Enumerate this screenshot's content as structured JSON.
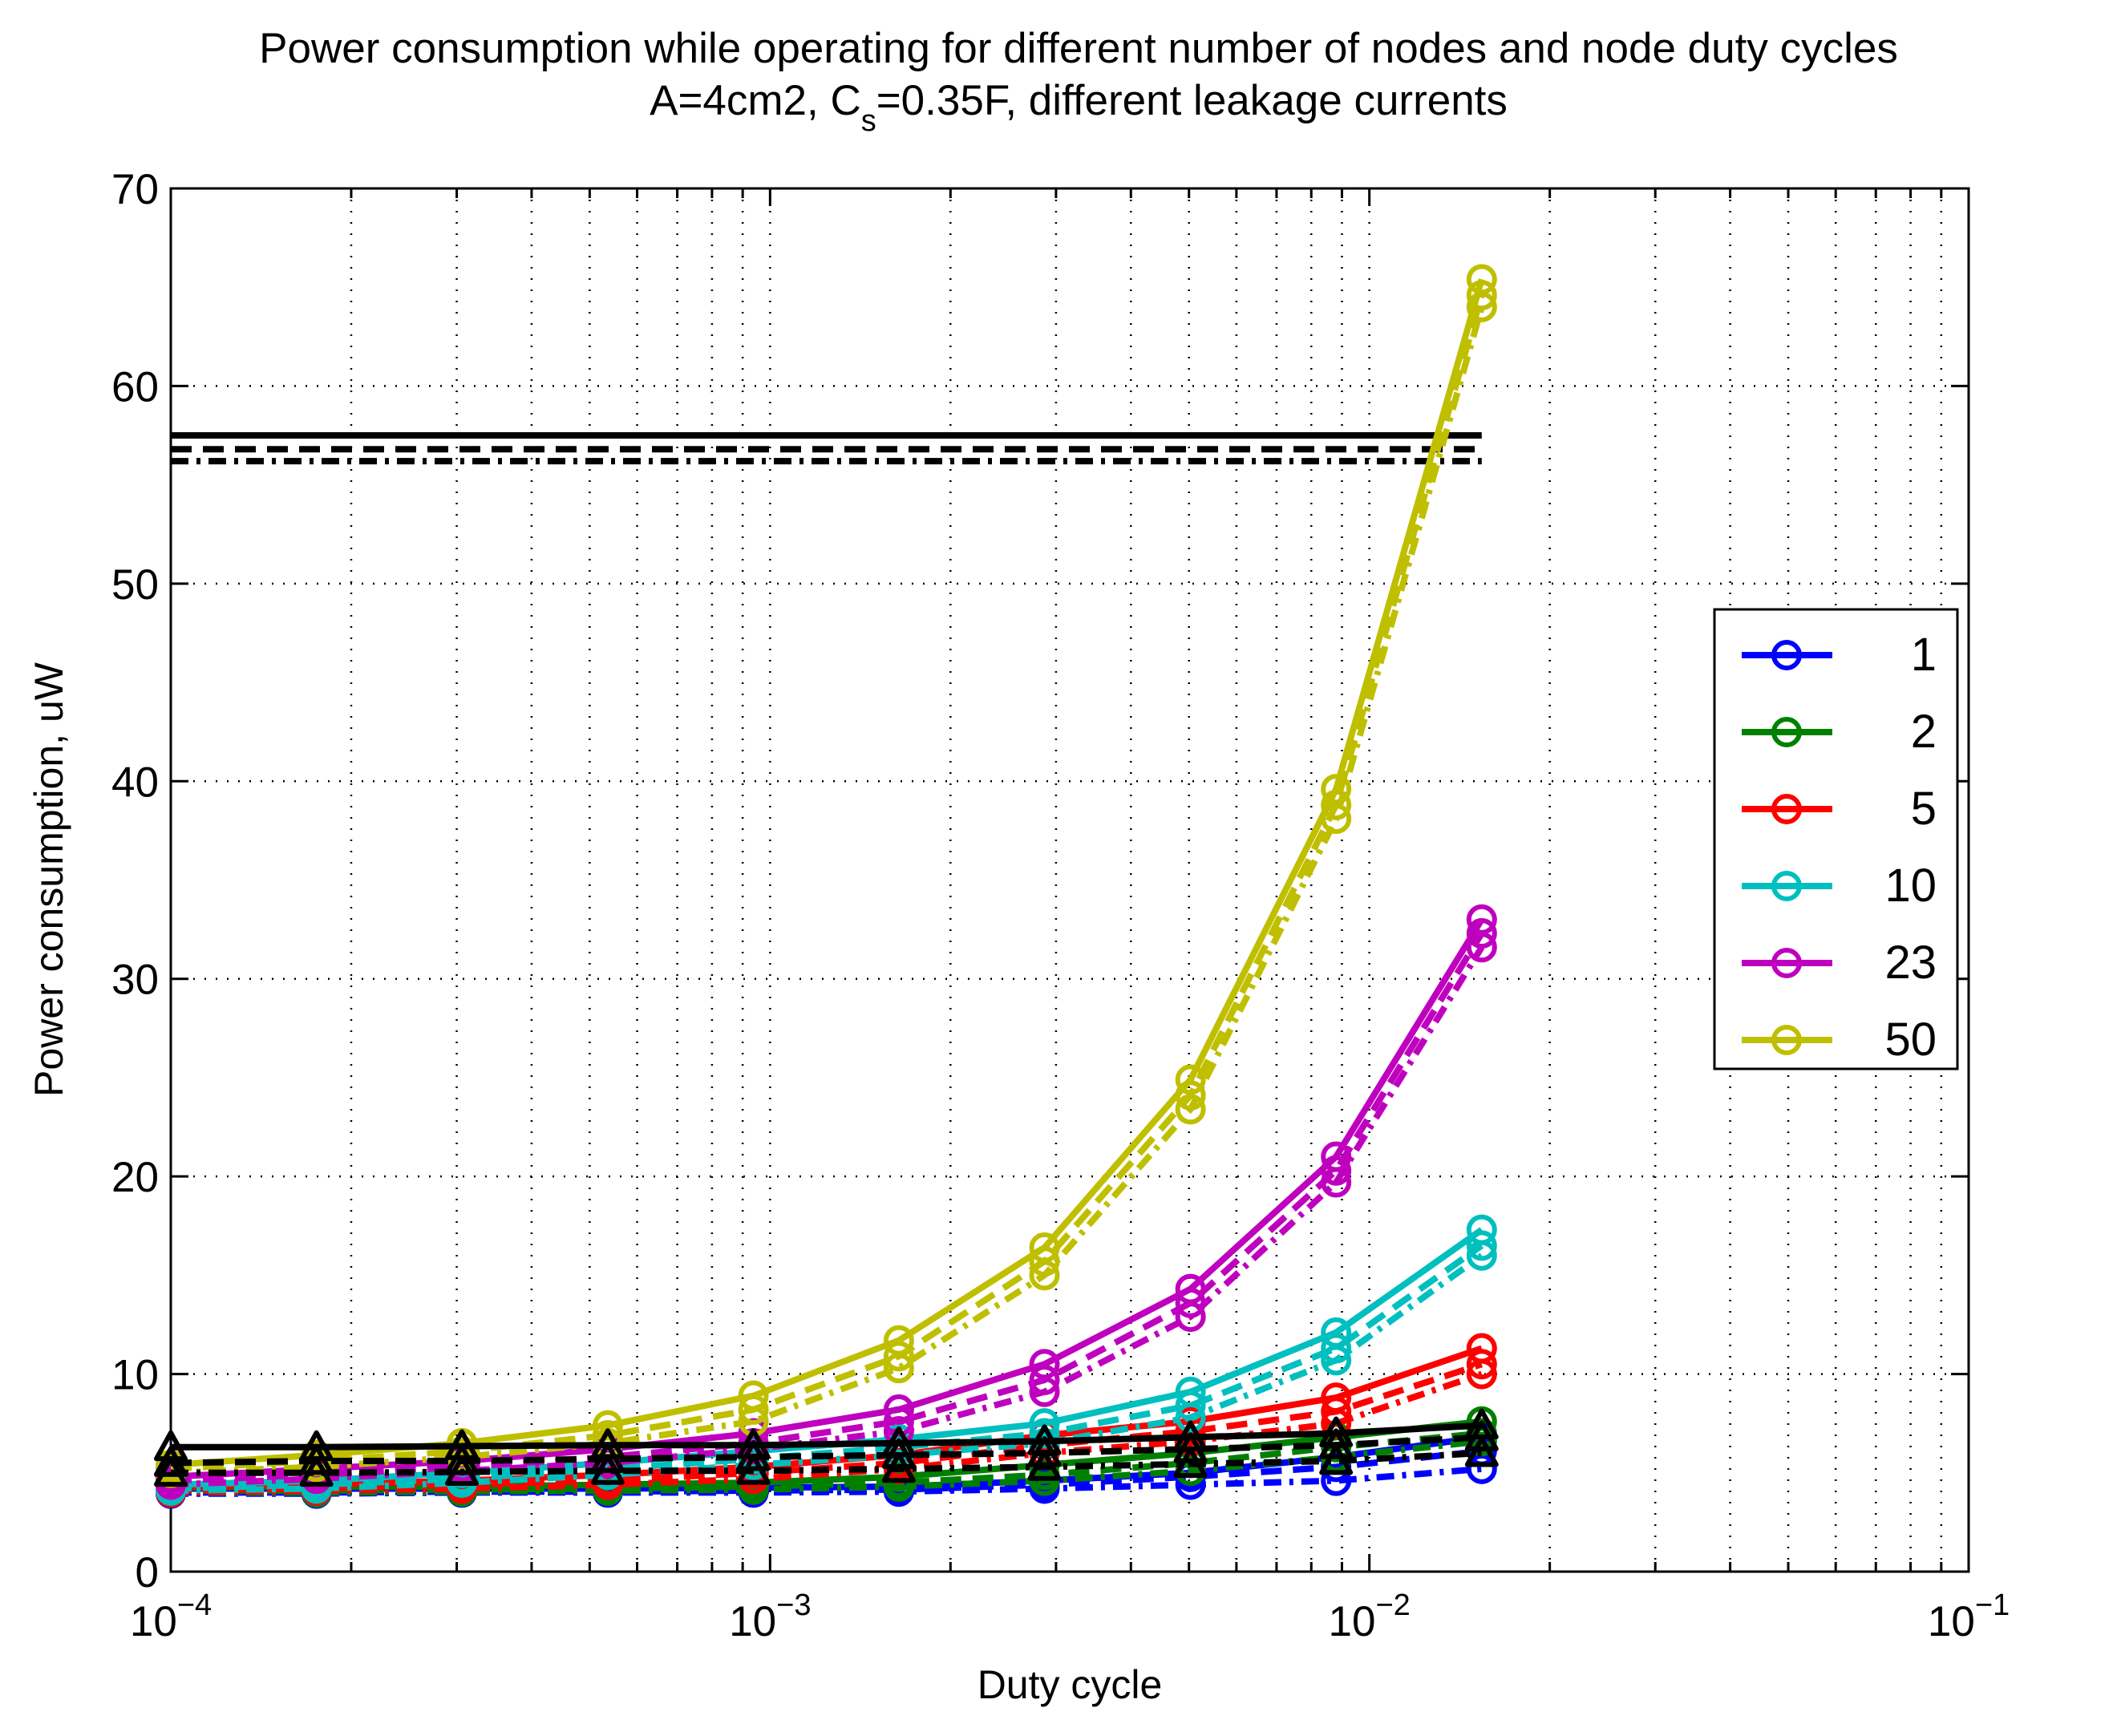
{
  "chart_data": {
    "type": "line",
    "title": "Power consumption while operating for different number of nodes and node duty cycles",
    "subtitle_parts": [
      "A=4cm2, C",
      "s",
      "=0.35F, different leakage currents"
    ],
    "xlabel": "Duty cycle",
    "ylabel": "Power consumption, uW",
    "x_scale": "log",
    "xlim": [
      0.0001,
      0.1
    ],
    "ylim": [
      0,
      70
    ],
    "grid": true,
    "legend_placement": "right",
    "x_ticks": [
      {
        "value": 0.0001,
        "base": "10",
        "exp": "−4"
      },
      {
        "value": 0.001,
        "base": "10",
        "exp": "−3"
      },
      {
        "value": 0.01,
        "base": "10",
        "exp": "−2"
      },
      {
        "value": 0.1,
        "base": "10",
        "exp": "−1"
      }
    ],
    "y_ticks": [
      "0",
      "10",
      "20",
      "30",
      "40",
      "50",
      "60",
      "70"
    ],
    "x": [
      0.0001,
      0.000175,
      0.000306,
      0.000536,
      0.000938,
      0.00164,
      0.00287,
      0.00503,
      0.0088,
      0.0154
    ],
    "series": [
      {
        "name": "1",
        "color": "#0000ff",
        "values": [
          [
            4.2,
            4.2,
            4.2,
            4.2,
            4.25,
            4.3,
            4.6,
            5.0,
            5.8,
            6.8
          ],
          [
            4.0,
            4.0,
            4.05,
            4.05,
            4.1,
            4.15,
            4.4,
            4.8,
            5.3,
            6.1
          ],
          [
            3.95,
            3.95,
            4.0,
            4.0,
            4.0,
            4.05,
            4.2,
            4.4,
            4.6,
            5.2
          ]
        ]
      },
      {
        "name": "2",
        "color": "#008000",
        "values": [
          [
            4.25,
            4.3,
            4.3,
            4.4,
            4.5,
            4.8,
            5.4,
            6.0,
            6.8,
            7.6
          ],
          [
            4.1,
            4.1,
            4.15,
            4.2,
            4.3,
            4.5,
            4.9,
            5.5,
            6.3,
            7.0
          ],
          [
            4.0,
            4.0,
            4.05,
            4.1,
            4.15,
            4.3,
            4.6,
            5.1,
            5.8,
            6.6
          ]
        ]
      },
      {
        "name": "5",
        "color": "#ff0000",
        "values": [
          [
            4.3,
            4.4,
            4.6,
            4.9,
            5.3,
            5.9,
            6.9,
            7.6,
            8.8,
            11.3
          ],
          [
            4.1,
            4.2,
            4.4,
            4.6,
            5.0,
            5.5,
            6.4,
            7.1,
            8.1,
            10.5
          ],
          [
            4.0,
            4.1,
            4.2,
            4.4,
            4.7,
            5.2,
            6.0,
            6.6,
            7.5,
            10.0
          ]
        ]
      },
      {
        "name": "10",
        "color": "#00bfbf",
        "values": [
          [
            4.4,
            4.6,
            5.0,
            5.5,
            6.1,
            6.7,
            7.5,
            9.1,
            12.1,
            17.3
          ],
          [
            4.2,
            4.4,
            4.7,
            5.2,
            5.7,
            6.3,
            7.0,
            8.4,
            11.3,
            16.5
          ],
          [
            4.1,
            4.2,
            4.5,
            4.9,
            5.4,
            5.9,
            6.5,
            7.8,
            10.7,
            16.0
          ]
        ]
      },
      {
        "name": "23",
        "color": "#bf00bf",
        "values": [
          [
            4.8,
            5.2,
            5.6,
            6.2,
            7.0,
            8.2,
            10.5,
            14.3,
            21.0,
            33.0
          ],
          [
            4.6,
            4.9,
            5.3,
            5.8,
            6.5,
            7.6,
            9.7,
            13.6,
            20.3,
            32.3
          ],
          [
            4.4,
            4.7,
            5.1,
            5.5,
            6.2,
            7.1,
            9.1,
            12.9,
            19.7,
            31.6
          ]
        ]
      },
      {
        "name": "50",
        "color": "#bfbf00",
        "values": [
          [
            5.4,
            5.9,
            6.5,
            7.4,
            8.9,
            11.7,
            16.4,
            24.9,
            39.6,
            65.4
          ],
          [
            5.2,
            5.6,
            6.1,
            6.9,
            8.2,
            10.9,
            15.7,
            24.1,
            38.8,
            64.6
          ],
          [
            5.0,
            5.3,
            5.8,
            6.5,
            7.6,
            10.3,
            15.0,
            23.4,
            38.1,
            64.0
          ]
        ]
      }
    ],
    "black_series": {
      "color": "#000000",
      "values": [
        [
          6.3,
          6.3,
          6.35,
          6.4,
          6.4,
          6.5,
          6.6,
          6.8,
          7.0,
          7.4
        ],
        [
          5.5,
          5.6,
          5.6,
          5.7,
          5.8,
          5.9,
          6.0,
          6.2,
          6.4,
          6.8
        ],
        [
          5.0,
          5.0,
          5.05,
          5.1,
          5.1,
          5.2,
          5.3,
          5.45,
          5.6,
          6.0
        ]
      ]
    },
    "horizontal_lines": [
      57.5,
      56.8,
      56.2
    ]
  }
}
